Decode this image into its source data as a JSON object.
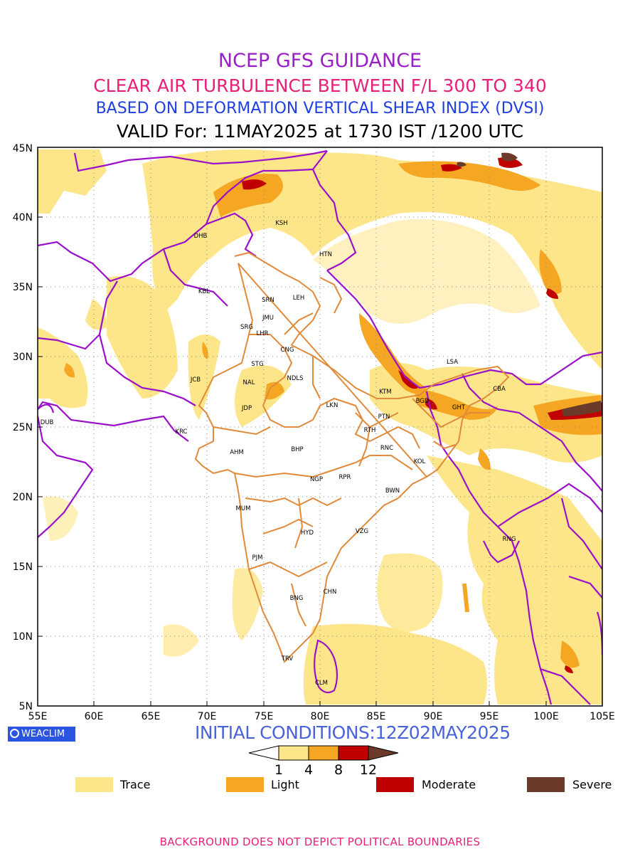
{
  "titles": {
    "line1": "NCEP GFS GUIDANCE",
    "line2": "CLEAR AIR TURBULENCE BETWEEN F/L 300 TO 340",
    "line3": "BASED ON DEFORMATION VERTICAL SHEAR INDEX (DVSI)",
    "line4": "VALID For: 11MAY2025 at 1730 IST /1200 UTC"
  },
  "axes": {
    "lat_labels": [
      "45N",
      "40N",
      "35N",
      "30N",
      "25N",
      "20N",
      "15N",
      "10N",
      "5N"
    ],
    "lon_labels": [
      "55E",
      "60E",
      "65E",
      "70E",
      "75E",
      "80E",
      "85E",
      "90E",
      "95E",
      "100E",
      "105E"
    ]
  },
  "stations": [
    "KSH",
    "DHB",
    "HTN",
    "KBL",
    "SRN",
    "LEH",
    "JMU",
    "SRG",
    "LHR",
    "CNG",
    "STG",
    "JCB",
    "NAL",
    "NDLS",
    "LSA",
    "KTM",
    "CBA",
    "BGD",
    "GHT",
    "JDP",
    "LKN",
    "PTN",
    "DUB",
    "KRC",
    "RTH",
    "AHM",
    "BHP",
    "RNC",
    "KOL",
    "NGP",
    "RPR",
    "BWN",
    "MUM",
    "HYD",
    "VZG",
    "RNG",
    "PJM",
    "CHN",
    "BNG",
    "TRV",
    "CLM"
  ],
  "logo_text": "WEACLIM",
  "initial_conditions": "INITIAL CONDITIONS:12Z02MAY2025",
  "scale_values": [
    "1",
    "4",
    "8",
    "12"
  ],
  "legend": [
    {
      "label": "Trace",
      "color": "#fde68a"
    },
    {
      "label": "Light",
      "color": "#f5a623"
    },
    {
      "label": "Moderate",
      "color": "#c00000"
    },
    {
      "label": "Severe",
      "color": "#6b3a2a"
    }
  ],
  "colors": {
    "boundary_country": "#9b10c9",
    "boundary_state": "#e08a3a",
    "grid": "#888888"
  },
  "footer": "BACKGROUND DOES NOT DEPICT POLITICAL BOUNDARIES"
}
